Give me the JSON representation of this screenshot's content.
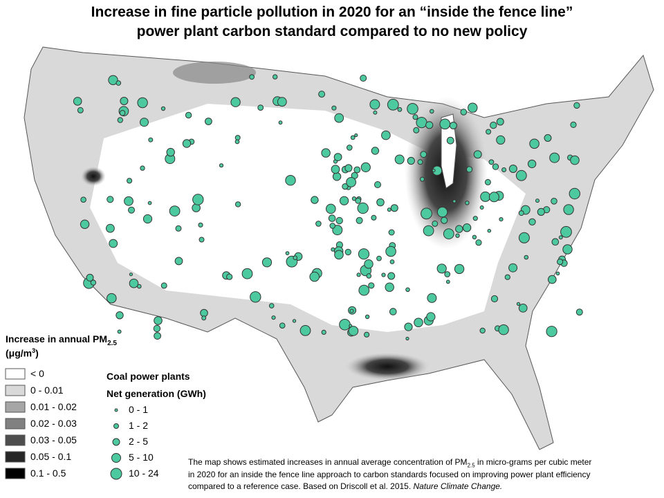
{
  "title": {
    "line1": "Increase in fine particle pollution in 2020 for an “inside the fence line”",
    "line2": "power plant carbon standard compared to no new policy"
  },
  "pm_legend": {
    "title": "Increase in annual PM",
    "title_sub": "2.5",
    "unit": "(μg/m",
    "unit_sup": "3",
    "unit_end": ")",
    "items": [
      "< 0",
      "0 - 0.01",
      "0.01 - 0.02",
      "0.02 - 0.03",
      "0.03 - 0.05",
      "0.05 - 0.1",
      "0.1 - 0.5"
    ]
  },
  "plant_legend": {
    "title": "Coal power plants",
    "subtitle": "Net generation (GWh)",
    "items": [
      "0 - 1",
      "1 - 2",
      "2 - 5",
      "5 - 10",
      "10 - 24"
    ]
  },
  "note": {
    "line1_a": "The map shows estimated increases in annual average concentration of PM",
    "line1_sub": "2.5",
    "line1_b": " in micro-grams per cubic meter",
    "line2": "in 2020  for an inside the fence line approach to carbon standards focused on improving power plant efficiency",
    "line3": "compared to a  reference case. Based on Driscoll et al. 2015. ",
    "citation": "Nature Climate Change."
  }
}
